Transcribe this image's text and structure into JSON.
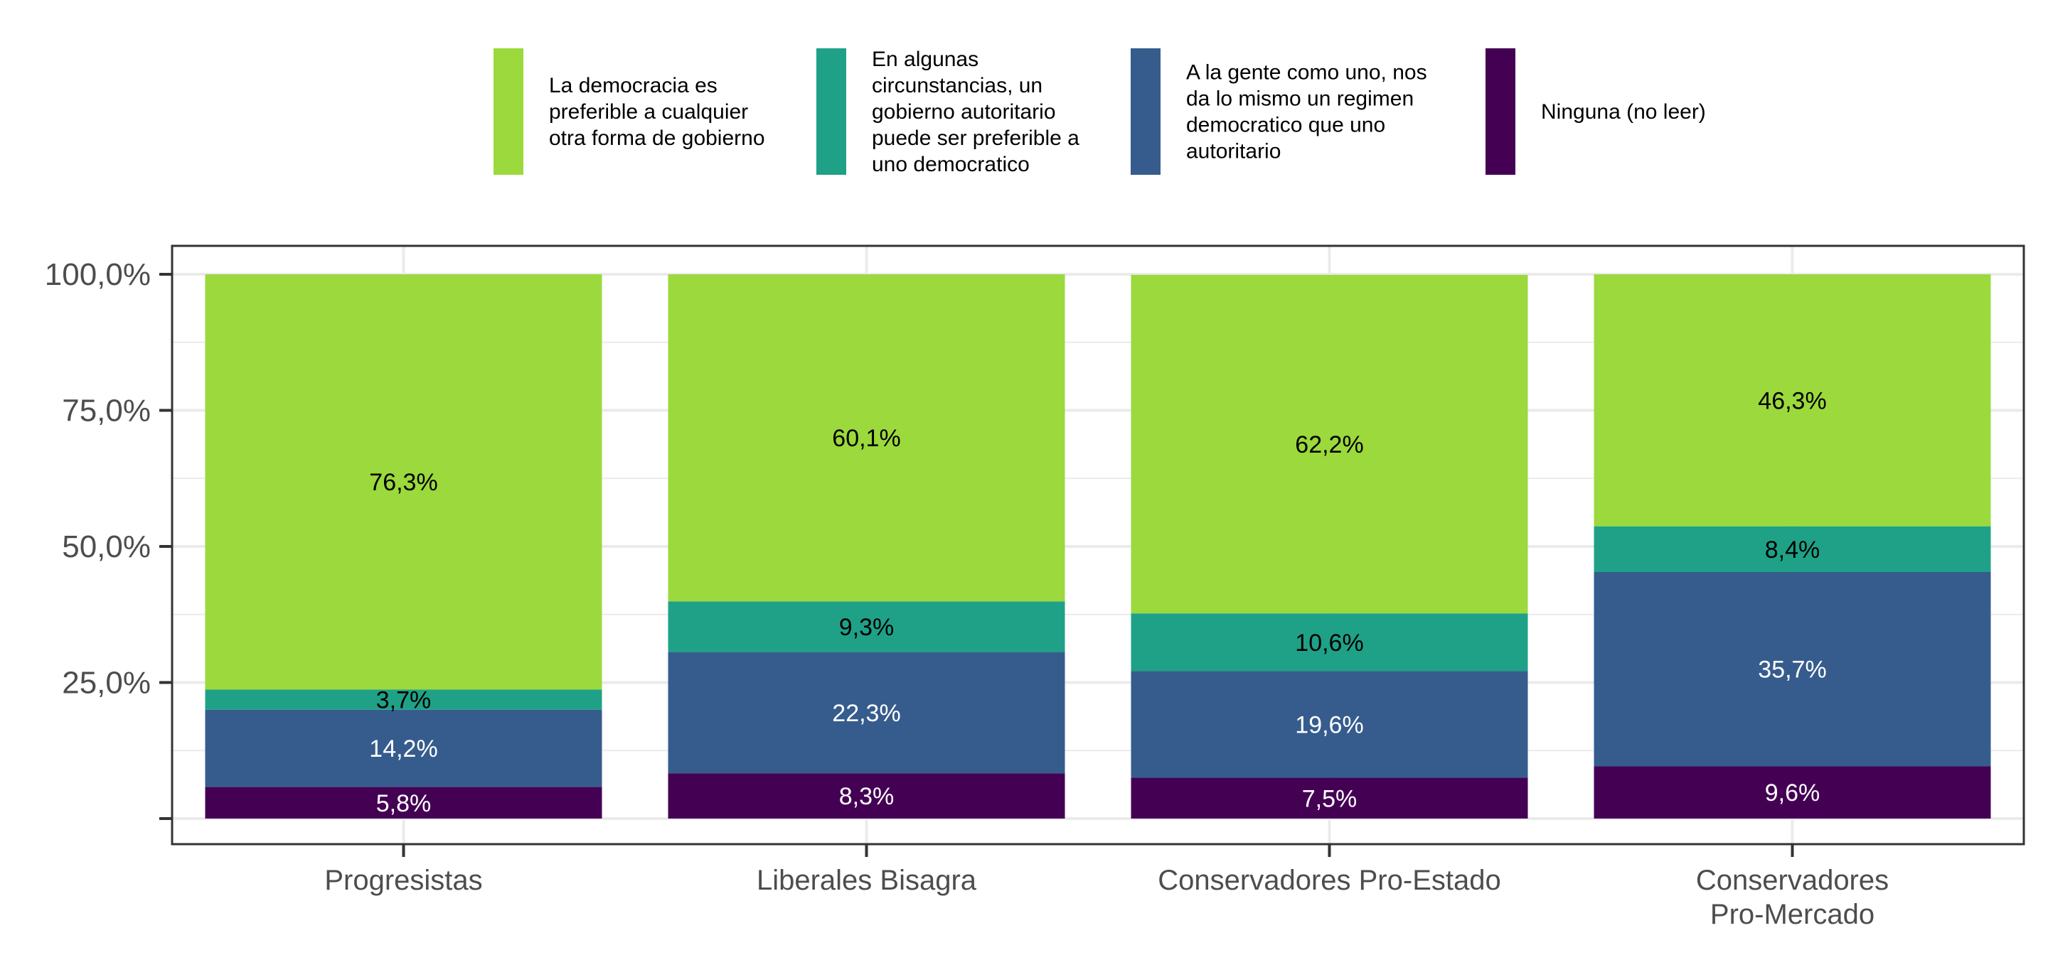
{
  "chart_data": {
    "type": "bar",
    "stacked": true,
    "categories": [
      "Progresistas",
      "Liberales Bisagra",
      "Conservadores Pro-Estado",
      "Conservadores Pro-Mercado"
    ],
    "category_lines": [
      [
        "Progresistas"
      ],
      [
        "Liberales Bisagra"
      ],
      [
        "Conservadores Pro-Estado"
      ],
      [
        "Conservadores",
        "Pro-Mercado"
      ]
    ],
    "series": [
      {
        "name": "Ninguna (no leer)",
        "name_lines": [
          "Ninguna (no leer)"
        ],
        "color": "#440154",
        "label_color": "#ffffff",
        "values": [
          5.8,
          8.3,
          7.5,
          9.6
        ],
        "labels": [
          "5,8%",
          "8,3%",
          "7,5%",
          "9,6%"
        ]
      },
      {
        "name": "A la gente como uno, nos da lo mismo un regimen democratico que uno autoritario",
        "name_lines": [
          "A la gente como uno, nos",
          "da lo mismo un regimen",
          "democratico que uno",
          "autoritario"
        ],
        "color": "#365c8d",
        "label_color": "#ffffff",
        "values": [
          14.2,
          22.3,
          19.6,
          35.7
        ],
        "labels": [
          "14,2%",
          "22,3%",
          "19,6%",
          "35,7%"
        ]
      },
      {
        "name": "En algunas circunstancias, un gobierno autoritario puede ser preferible a uno democratico",
        "name_lines": [
          "En algunas",
          "circunstancias, un",
          "gobierno autoritario",
          "puede ser preferible a",
          "uno democratico"
        ],
        "color": "#1fa187",
        "label_color": "#000000",
        "values": [
          3.7,
          9.3,
          10.6,
          8.4
        ],
        "labels": [
          "3,7%",
          "9,3%",
          "10,6%",
          "8,4%"
        ]
      },
      {
        "name": "La democracia es preferible a cualquier otra forma de gobierno",
        "name_lines": [
          "La democracia es",
          "preferible a cualquier",
          "otra forma de gobierno"
        ],
        "color": "#9bd93c",
        "label_color": "#000000",
        "values": [
          76.3,
          60.1,
          62.2,
          46.3
        ],
        "labels": [
          "76,3%",
          "60,1%",
          "62,2%",
          "46,3%"
        ]
      }
    ],
    "legend_order": [
      3,
      2,
      1,
      0
    ],
    "yticks": [
      25,
      50,
      75,
      100
    ],
    "ytick_labels": [
      "25,0%",
      "50,0%",
      "75,0%",
      "100,0%"
    ],
    "ylim": [
      -5,
      105
    ],
    "grid": true,
    "legend_position": "top",
    "title": "",
    "xlabel": "",
    "ylabel": ""
  }
}
